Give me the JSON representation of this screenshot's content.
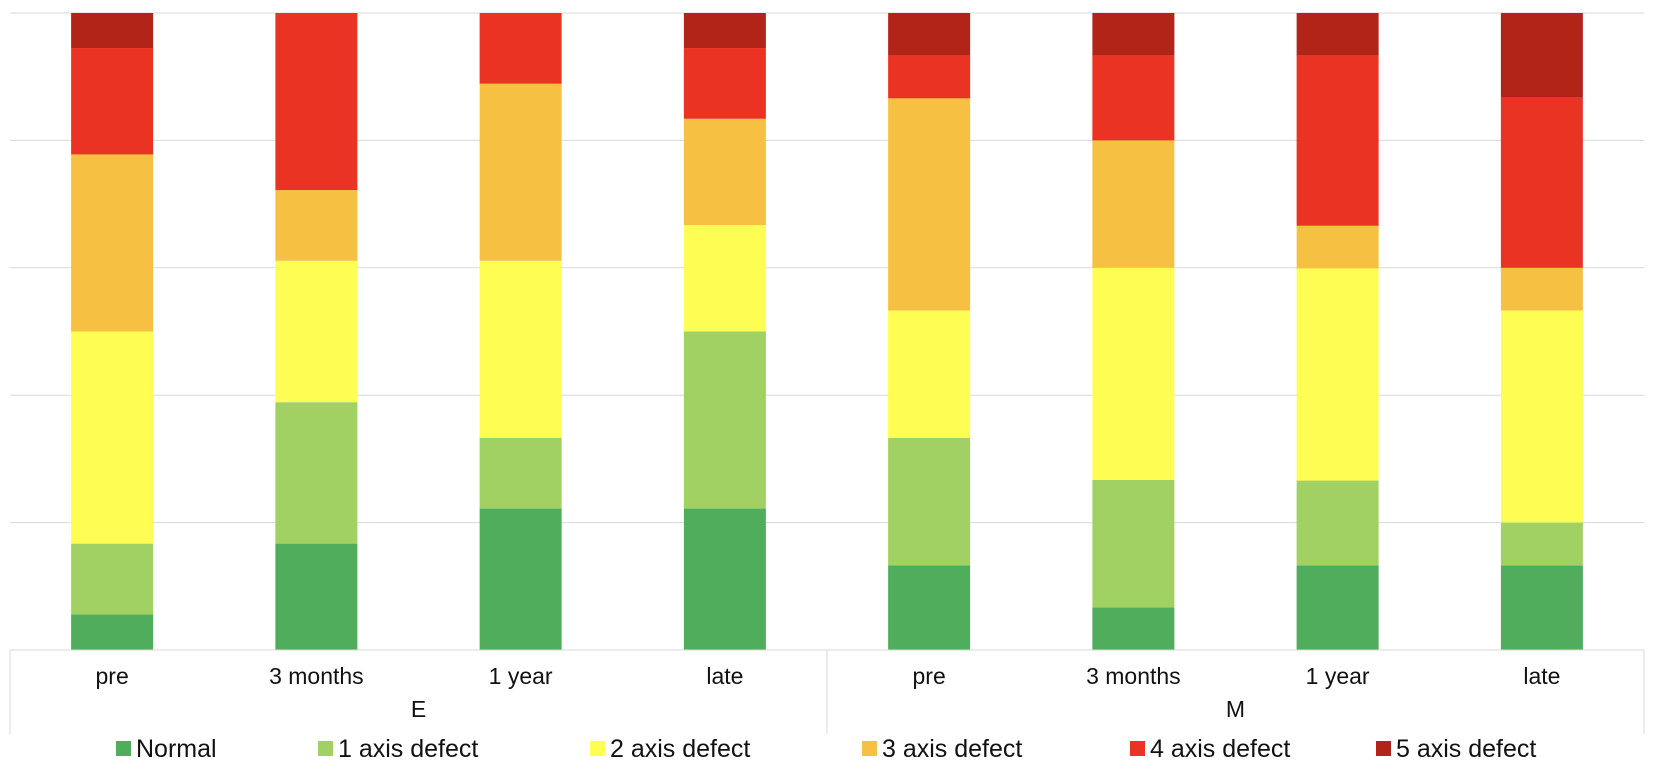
{
  "chart_data": {
    "type": "bar",
    "stacked": true,
    "normalized": true,
    "title": "",
    "xlabel": "",
    "ylabel": "",
    "ylim": [
      0,
      100
    ],
    "y_tick_labels_visible": false,
    "grid": true,
    "groups": [
      {
        "label": "E",
        "categories": [
          "pre",
          "3 months",
          "1 year",
          "late"
        ]
      },
      {
        "label": "M",
        "categories": [
          "pre",
          "3 months",
          "1 year",
          "late"
        ]
      }
    ],
    "series": [
      {
        "name": "Normal",
        "color": "#4fad5b",
        "values": [
          5.6,
          16.7,
          22.2,
          22.2,
          13.3,
          6.7,
          13.3,
          13.3
        ]
      },
      {
        "name": "1 axis defect",
        "color": "#a1d063",
        "values": [
          11.1,
          22.2,
          11.1,
          27.8,
          20.0,
          20.0,
          13.3,
          6.7
        ]
      },
      {
        "name": "2 axis defect",
        "color": "#fdfd53",
        "values": [
          33.3,
          22.2,
          27.8,
          16.7,
          20.0,
          33.3,
          33.3,
          33.3
        ]
      },
      {
        "name": "3 axis defect",
        "color": "#f6c142",
        "values": [
          27.8,
          11.1,
          27.8,
          16.7,
          33.3,
          20.0,
          6.7,
          6.7
        ]
      },
      {
        "name": "4 axis defect",
        "color": "#eb3324",
        "values": [
          16.7,
          27.8,
          11.1,
          11.1,
          6.7,
          13.3,
          26.7,
          26.7
        ]
      },
      {
        "name": "5 axis defect",
        "color": "#b22417",
        "values": [
          5.5,
          0.0,
          0.0,
          5.5,
          6.7,
          6.7,
          6.7,
          13.3
        ]
      }
    ]
  }
}
